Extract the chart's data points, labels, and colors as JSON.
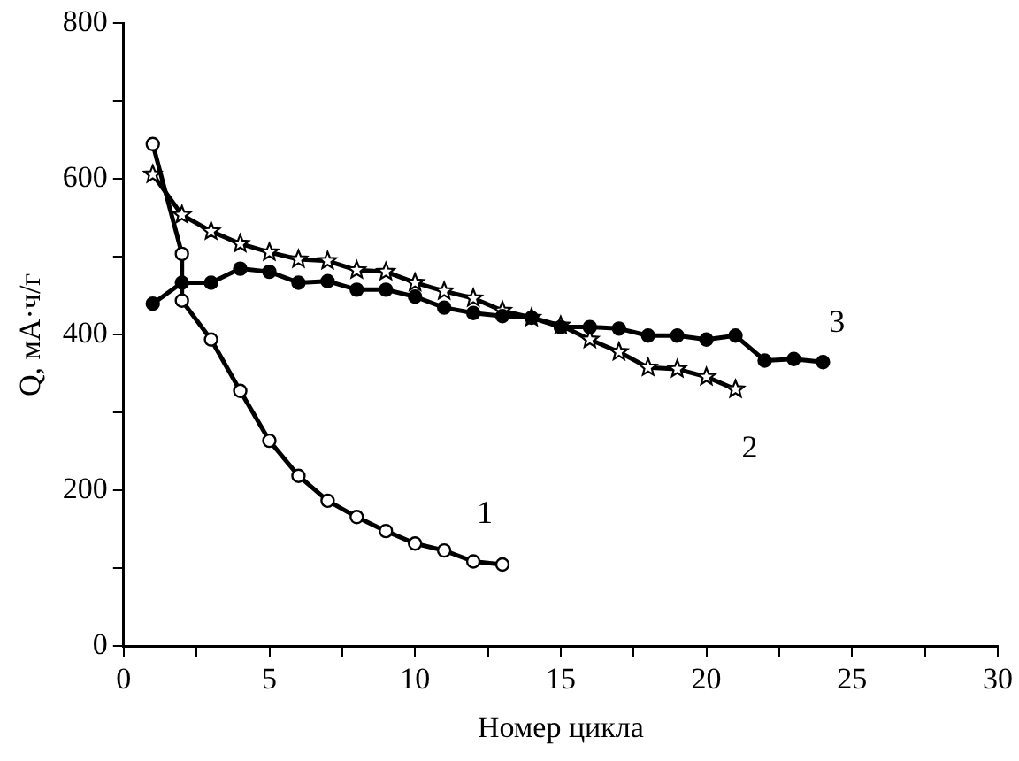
{
  "chart_data": {
    "type": "line",
    "xlabel": "Номер цикла",
    "ylabel": "Q, мА·ч/г",
    "xlim": [
      0,
      30
    ],
    "xticks": [
      0,
      {
        "value": 2.5,
        "label": null
      },
      5,
      {
        "value": 7.5,
        "label": null
      },
      10,
      {
        "value": 12.5,
        "label": null
      },
      15,
      {
        "value": 17.5,
        "label": null
      },
      20,
      {
        "value": 22.5,
        "label": null
      },
      25,
      {
        "value": 27.5,
        "label": null
      },
      30
    ],
    "ylim": [
      0,
      800
    ],
    "yticks": [
      0,
      {
        "value": 100,
        "label": null
      },
      200,
      {
        "value": 300,
        "label": null
      },
      400,
      {
        "value": 500,
        "label": null
      },
      600,
      {
        "value": 700,
        "label": null
      },
      800
    ],
    "grid": false,
    "legend": false,
    "line_style": "solid",
    "series": [
      {
        "name": "1",
        "color": "#000000",
        "marker": "circle",
        "x": [
          1,
          2,
          2,
          3,
          4,
          5,
          6,
          7,
          8,
          9,
          10,
          11,
          12,
          13
        ],
        "values": [
          645,
          504,
          444,
          394,
          328,
          264,
          219,
          187,
          166,
          148,
          132,
          123,
          109,
          105
        ]
      },
      {
        "name": "2",
        "color": "#000000",
        "marker": "star",
        "x": [
          1,
          2,
          3,
          4,
          5,
          6,
          7,
          8,
          9,
          10,
          11,
          12,
          13,
          14,
          15,
          16,
          17,
          18,
          19,
          20,
          21
        ],
        "values": [
          606,
          554,
          533,
          517,
          506,
          497,
          495,
          483,
          481,
          467,
          456,
          447,
          431,
          422,
          412,
          394,
          378,
          358,
          356,
          346,
          330
        ]
      },
      {
        "name": "3",
        "color": "#000000",
        "marker": "circle",
        "x": [
          1,
          2,
          3,
          4,
          5,
          6,
          7,
          8,
          9,
          10,
          11,
          12,
          13,
          14,
          15,
          16,
          17,
          18,
          19,
          20,
          21,
          22,
          23,
          24
        ],
        "values": [
          440,
          467,
          467,
          485,
          481,
          467,
          469,
          458,
          458,
          449,
          435,
          428,
          424,
          422,
          410,
          410,
          408,
          399,
          399,
          394,
          399,
          367,
          369,
          365
        ]
      }
    ]
  }
}
